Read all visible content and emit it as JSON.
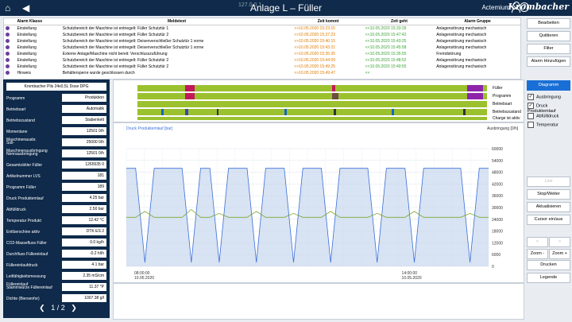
{
  "titlebar": {
    "title": "Anlage L – Füller",
    "user": "Actemium",
    "brand": "Krombacher",
    "mini": "127.0.0.1"
  },
  "alarms": {
    "headers": [
      "Alarm Klasse",
      "Meldetext",
      "Zeit kommt",
      "Zeit geht",
      "Alarm Gruppe"
    ],
    "rows": [
      {
        "cls": "Einstellung",
        "text": "Schutzbereich der Maschine ist entriegelt: Füller Schutztür 1",
        "come": ">>10.05.2020 15:23:15",
        "go": "<<10.05.2020 15:33:39",
        "group": "Anlagenstörung mechanisch"
      },
      {
        "cls": "Einstellung",
        "text": "Schutzbereich der Maschine ist entriegelt: Füller Schutztür 2",
        "come": ">>10.05.2020 15:37:23",
        "go": "<<10.05.2020 15:47:42",
        "group": "Anlagenstörung mechanisch"
      },
      {
        "cls": "Einstellung",
        "text": "Schutzbereich der Maschine ist entriegelt: Deisenverschließer Schutztür 1 vorne",
        "come": ">>10.05.2020 15:40:15",
        "go": "<<10.05.2020 15:43:25",
        "group": "Anlagenstörung mechanisch"
      },
      {
        "cls": "Einstellung",
        "text": "Schutzbereich der Maschine ist entriegelt: Deisenverschließer Schutztür 1 vorne",
        "come": ">>10.05.2020 15:43:21",
        "go": "<<10.05.2020 15:45:58",
        "group": "Anlagenstörung mechanisch"
      },
      {
        "cls": "Einstellung",
        "text": "Externe Anlage/Maschine nicht bereit: Verschlusszuführung",
        "come": ">>10.05.2020 15:35:35",
        "go": "<<10.05.2020 15:35:55",
        "group": "Fremdstörung"
      },
      {
        "cls": "Einstellung",
        "text": "Schutzbereich der Maschine ist entriegelt: Füller Schutztür 2",
        "come": ">>10.05.2020 15:44:09",
        "go": "<<10.05.2020 15:48:52",
        "group": "Anlagenstörung mechanisch"
      },
      {
        "cls": "Einstellung",
        "text": "Schutzbereich der Maschine ist entriegelt: Füller Schutztür 2",
        "come": ">>10.05.2020 15:49:25",
        "go": "<<10.05.2020 15:49:55",
        "group": "Anlagenstörung mechanisch"
      },
      {
        "cls": "Hinweis",
        "text": "Behältersperre wurde geschlossen durch",
        "come": ">>10.05.2020 15:49:47",
        "go": "<<",
        "group": ""
      }
    ]
  },
  "right": {
    "buttons_top": [
      "Bearbeiten",
      "Quittieren",
      "Filter",
      "Alarm Hinzufügen"
    ],
    "diagram": "Diagramm",
    "checks": [
      {
        "label": "Ausbringung",
        "checked": "✓"
      },
      {
        "label": "Druck Produktemlauf",
        "checked": "✓"
      },
      {
        "label": "Abfüllldruck",
        "checked": ""
      },
      {
        "label": "Temperatur",
        "checked": ""
      }
    ],
    "buttons_mid": [
      "Live",
      "Stop/Weiter",
      "Aktualisieren",
      "Cursor ein/aus"
    ],
    "arrows": [
      "<",
      ">"
    ],
    "zoom": [
      "Zoom -",
      "Zoom +"
    ],
    "print": "Drucken",
    "legend": "Legende"
  },
  "left": {
    "header": "Krombacher Pils 24x0,5L Dose DPG",
    "rows": [
      {
        "label": "Programm",
        "value": "Produktion"
      },
      {
        "label": "Betriebsart",
        "value": "Automatik"
      },
      {
        "label": "Betriebszustand",
        "value": "Stabenkett"
      },
      {
        "label": "Momentane Maschinenausbr.",
        "value": "12501 0/h"
      },
      {
        "label": "Soll-Maschinenausbringung",
        "value": "25000 0/h"
      },
      {
        "label": "Nennausbringung",
        "value": "12501 0/h"
      },
      {
        "label": "Gesamtzähler Füller",
        "value": "1265535 0"
      },
      {
        "label": "Artikelnummer LVS",
        "value": "181"
      },
      {
        "label": "Programm Füller",
        "value": "189"
      },
      {
        "label": "Druck Produktemlauf",
        "value": "4.25 bar"
      },
      {
        "label": "Abfülldruck",
        "value": "2.50 bar"
      },
      {
        "label": "Temperatur Produkt",
        "value": "12.42 °C"
      },
      {
        "label": "Entlüerschine aktiv",
        "value": "DTK ES 2"
      },
      {
        "label": "CO2-Massefluss Füller",
        "value": "0.0 kg/h"
      },
      {
        "label": "Durchfluss Füllereinlauf",
        "value": "-0.2 hl/h"
      },
      {
        "label": "Füllereinlaufdruck",
        "value": "4.1 bar"
      },
      {
        "label": "Leitfähigkeitsmessung Füllereinlauf",
        "value": "2.35 mS/cm"
      },
      {
        "label": "Stammwürze Füllereinlauf",
        "value": "11.37 °P"
      },
      {
        "label": "Dichte (Biersenfor)",
        "value": "1007.38 g/l"
      }
    ],
    "pager": "1 / 2"
  },
  "status_labels": [
    "Füller",
    "Programm",
    "Betriebsart",
    "Betriebszustand",
    "Charge ist aktiv"
  ],
  "chart_data": {
    "type": "line",
    "left_axis_label": "Druck Produktemlauf [bar]",
    "right_axis_label": "Ausbringung [0/h]",
    "right_ticks": [
      "60000",
      "54000",
      "48000",
      "42000",
      "36000",
      "30000",
      "24000",
      "18000",
      "12000",
      "6000",
      "0"
    ],
    "x_ticks": [
      {
        "time": "08:00:00",
        "date": "10.05.2020"
      },
      {
        "time": "14:00:00",
        "date": "10.05.2020"
      }
    ],
    "series": [
      {
        "name": "Ausbringung",
        "color": "#3b6fd8",
        "values": [
          50000,
          50000,
          2000,
          50000,
          50000,
          50000,
          50000,
          2000,
          50000,
          50000,
          2000,
          50000,
          50000,
          50000,
          2000,
          50000,
          50000,
          50000,
          2000,
          50000,
          50000,
          50000,
          2000,
          50000,
          50000,
          50000,
          50000,
          2000,
          50000,
          50000,
          50000,
          2000,
          50000,
          50000,
          50000,
          50000,
          50000,
          2000,
          50000,
          50000
        ]
      },
      {
        "name": "Druck Produktemlauf",
        "color": "#7aa830",
        "values": [
          25000,
          25000,
          28000,
          25000,
          25000,
          25000,
          25000,
          29000,
          25000,
          25000,
          27000,
          25000,
          25000,
          25000,
          28000,
          25000,
          25000,
          25000,
          27000,
          25000,
          25000,
          25000,
          28000,
          25000,
          25000,
          25000,
          25000,
          27000,
          25000,
          25000,
          25000,
          28000,
          25000,
          25000,
          25000,
          25000,
          25000,
          27000,
          25000,
          25000
        ]
      }
    ]
  }
}
